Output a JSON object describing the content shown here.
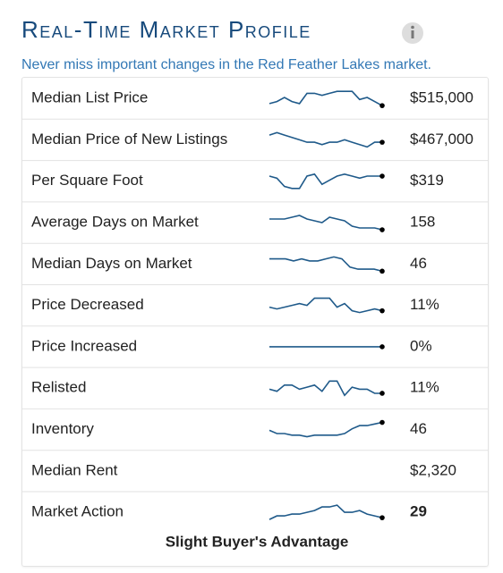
{
  "header": {
    "title": "Real-Time Market Profile",
    "subtitle": "Never miss important changes in the Red Feather Lakes market."
  },
  "rows": [
    {
      "label": "Median List Price",
      "value": "$515,000",
      "sparkline": [
        2,
        3,
        5,
        3,
        2,
        7,
        7,
        6,
        7,
        8,
        8,
        8,
        4,
        5,
        3,
        1
      ]
    },
    {
      "label": "Median Price of New Listings",
      "value": "$467,000",
      "sparkline": [
        7,
        8,
        7,
        6,
        5,
        4,
        4,
        3,
        4,
        4,
        5,
        4,
        3,
        2,
        4,
        4
      ]
    },
    {
      "label": "Per Square Foot",
      "value": "$319",
      "sparkline": [
        8,
        7,
        3,
        2,
        2,
        8,
        9,
        4,
        6,
        8,
        9,
        8,
        7,
        8,
        8,
        8
      ]
    },
    {
      "label": "Average Days on Market",
      "value": "158",
      "sparkline": [
        7,
        7,
        7,
        8,
        9,
        7,
        6,
        5,
        8,
        7,
        6,
        3,
        2,
        2,
        2,
        1
      ]
    },
    {
      "label": "Median Days on Market",
      "value": "46",
      "sparkline": [
        7,
        7,
        7,
        6,
        7,
        6,
        6,
        7,
        8,
        7,
        3,
        2,
        2,
        2,
        1
      ]
    },
    {
      "label": "Price Decreased",
      "value": "11%",
      "sparkline": [
        4,
        3,
        4,
        5,
        6,
        5,
        9,
        9,
        9,
        4,
        6,
        2,
        1,
        2,
        3,
        2
      ]
    },
    {
      "label": "Price Increased",
      "value": "0%",
      "sparkline": [
        0,
        0,
        0,
        0,
        0,
        0,
        0,
        0,
        0,
        0,
        0,
        0,
        0,
        0,
        0,
        0
      ]
    },
    {
      "label": "Relisted",
      "value": "11%",
      "sparkline": [
        5,
        4,
        7,
        7,
        5,
        6,
        7,
        4,
        9,
        9,
        2,
        6,
        5,
        5,
        3,
        3
      ]
    },
    {
      "label": "Inventory",
      "value": "46",
      "sparkline": [
        4,
        2,
        2,
        1,
        1,
        0,
        1,
        1,
        1,
        1,
        2,
        5,
        7,
        7,
        8,
        9
      ]
    },
    {
      "label": "Median Rent",
      "value": "$2,320"
    },
    {
      "label": "Market Action",
      "value": "29",
      "sparkline": [
        2,
        4,
        4,
        5,
        5,
        6,
        7,
        9,
        9,
        10,
        6,
        6,
        7,
        5,
        4,
        3
      ]
    }
  ],
  "footer": "Slight Buyer's Advantage"
}
